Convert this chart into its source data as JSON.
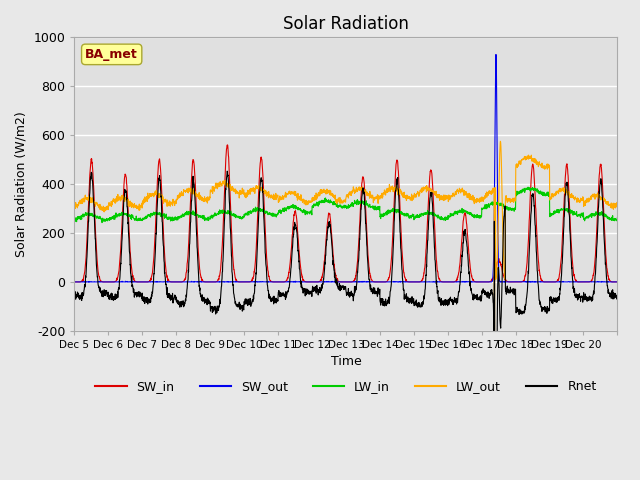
{
  "title": "Solar Radiation",
  "ylabel": "Solar Radiation (W/m2)",
  "xlabel": "Time",
  "ylim": [
    -200,
    1000
  ],
  "background_color": "#e8e8e8",
  "plot_bg_color": "#e0e0e0",
  "grid_color": "#ffffff",
  "colors": {
    "SW_in": "#dd0000",
    "SW_out": "#0000ee",
    "LW_in": "#00cc00",
    "LW_out": "#ffaa00",
    "Rnet": "#000000"
  },
  "annotation_text": "BA_met",
  "annotation_color": "#880000",
  "annotation_bg": "#ffff99",
  "x_ticks": [
    "Dec 5",
    "Dec 6",
    "Dec 7",
    "Dec 8",
    "Dec 9",
    "Dec 10",
    "Dec 11",
    "Dec 12",
    "Dec 13",
    "Dec 14",
    "Dec 15",
    "Dec 16",
    "Dec 17",
    "Dec 18",
    "Dec 19",
    "Dec 20"
  ],
  "num_days": 16,
  "points_per_day": 144
}
